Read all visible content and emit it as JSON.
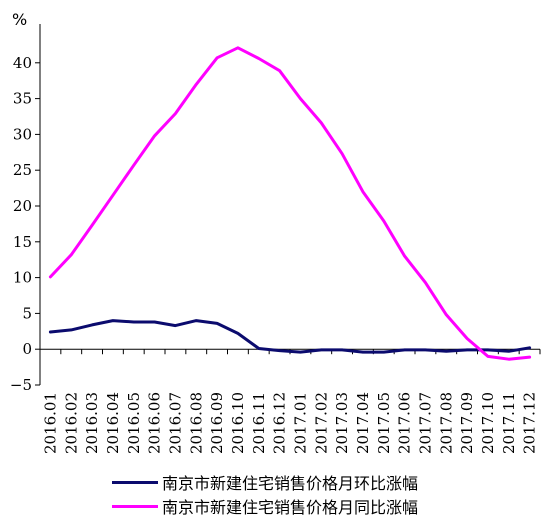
{
  "chart_data": {
    "type": "line",
    "ylabel": "%",
    "ylim": [
      -5,
      45
    ],
    "yticks": [
      -5,
      0,
      5,
      10,
      15,
      20,
      25,
      30,
      35,
      40
    ],
    "categories": [
      "2016.01",
      "2016.02",
      "2016.03",
      "2016.04",
      "2016.05",
      "2016.06",
      "2016.07",
      "2016.08",
      "2016.09",
      "2016.10",
      "2016.11",
      "2016.12",
      "2017.01",
      "2017.02",
      "2017.03",
      "2017.04",
      "2017.05",
      "2017.06",
      "2017.07",
      "2017.08",
      "2017.09",
      "2017.10",
      "2017.11",
      "2017.12"
    ],
    "series": [
      {
        "name": "南京市新建住宅销售价格月环比涨幅",
        "color": "#0b0b6e",
        "values": [
          2.4,
          2.7,
          3.4,
          4.0,
          3.8,
          3.8,
          3.3,
          4.0,
          3.6,
          2.2,
          0.1,
          -0.2,
          -0.4,
          -0.1,
          -0.1,
          -0.4,
          -0.4,
          -0.1,
          -0.1,
          -0.3,
          -0.1,
          -0.1,
          -0.3,
          0.2
        ]
      },
      {
        "name": "南京市新建住宅销售价格月同比涨幅",
        "color": "#ff00ff",
        "values": [
          10.1,
          13.2,
          17.3,
          21.5,
          25.7,
          29.8,
          32.9,
          37.0,
          40.7,
          42.1,
          40.6,
          38.9,
          35.0,
          31.6,
          27.3,
          22.0,
          17.9,
          13.0,
          9.3,
          4.8,
          1.5,
          -1.0,
          -1.4,
          -1.1
        ]
      }
    ]
  }
}
